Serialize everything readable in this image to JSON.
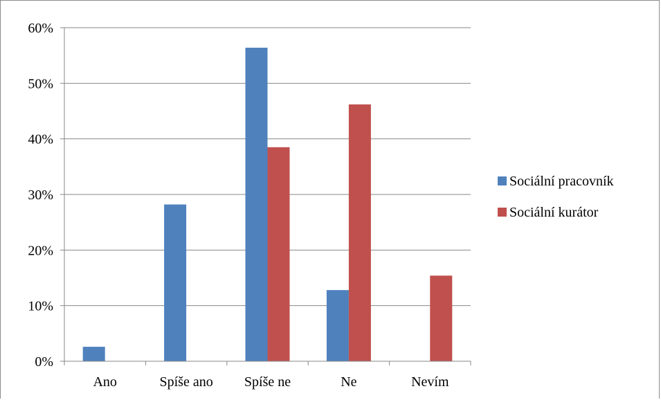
{
  "chart_data": {
    "type": "bar",
    "categories": [
      "Ano",
      "Spíše ano",
      "Spíše ne",
      "Ne",
      "Nevím"
    ],
    "series": [
      {
        "name": "Sociální pracovník",
        "color": "#4F81BD",
        "values": [
          2.6,
          28.2,
          56.4,
          12.8,
          0
        ]
      },
      {
        "name": "Sociální kurátor",
        "color": "#C0504D",
        "values": [
          0,
          0,
          38.5,
          46.2,
          15.4
        ]
      }
    ],
    "yticks": [
      "0%",
      "10%",
      "20%",
      "30%",
      "40%",
      "50%",
      "60%"
    ],
    "ylim": [
      0,
      60
    ],
    "ytick_unit": "%",
    "grid": true,
    "legend_position": "right"
  }
}
